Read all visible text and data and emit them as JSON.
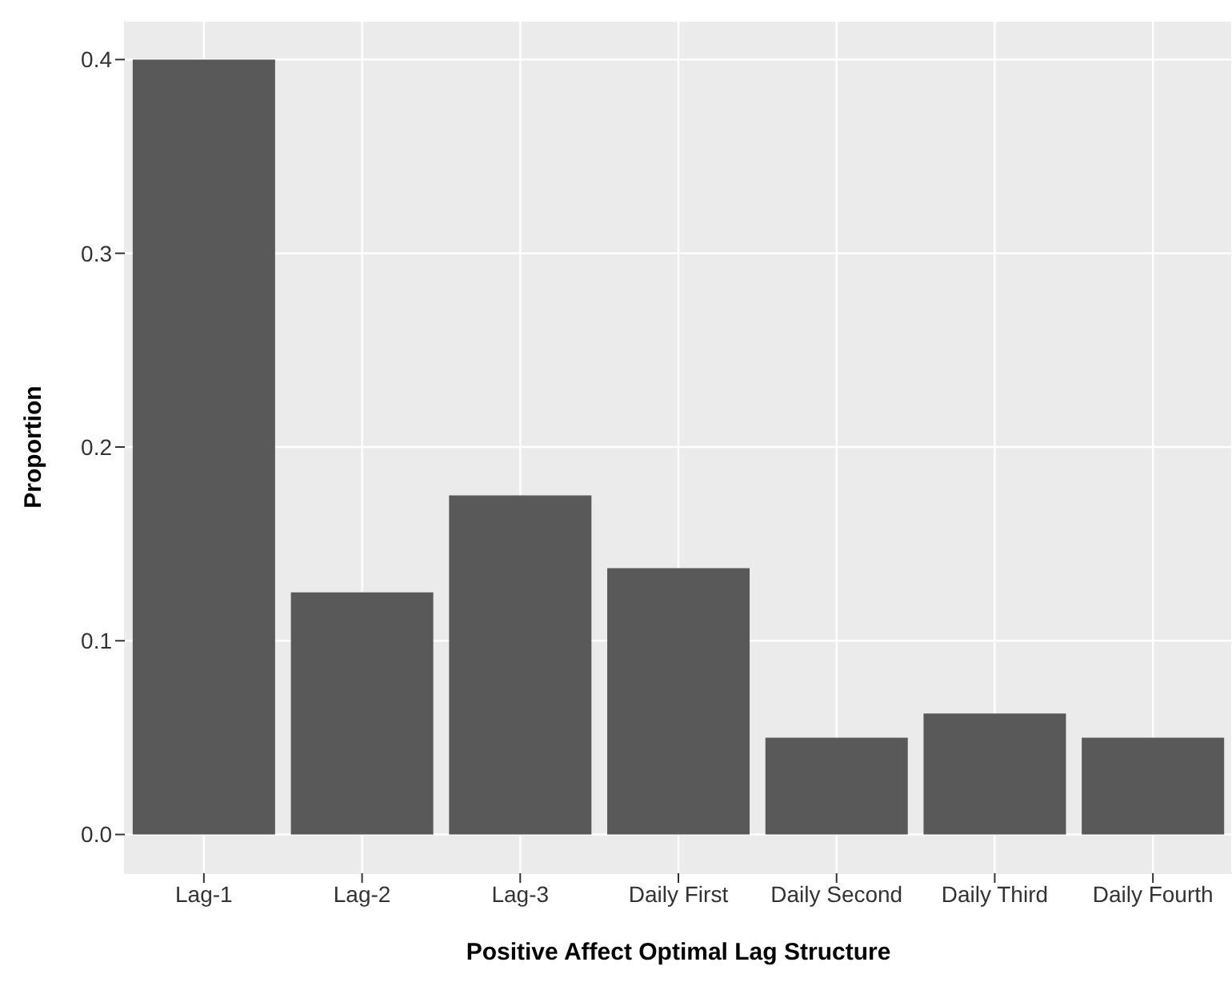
{
  "chart_data": {
    "type": "bar",
    "xlabel": "Positive Affect Optimal Lag Structure",
    "ylabel": "Proportion",
    "categories": [
      "Lag-1",
      "Lag-2",
      "Lag-3",
      "Daily First",
      "Daily Second",
      "Daily Third",
      "Daily Fourth"
    ],
    "values": [
      0.4,
      0.125,
      0.175,
      0.1375,
      0.05,
      0.0625,
      0.05
    ],
    "color": "#595959",
    "ylim": [
      -0.02,
      0.42
    ],
    "yticks": [
      {
        "value": 0,
        "label": "0.0"
      },
      {
        "value": 0.1,
        "label": "0.1"
      },
      {
        "value": 0.2,
        "label": "0.2"
      },
      {
        "value": 0.3,
        "label": "0.3"
      },
      {
        "value": 0.4,
        "label": "0.4"
      }
    ],
    "grid": true
  }
}
